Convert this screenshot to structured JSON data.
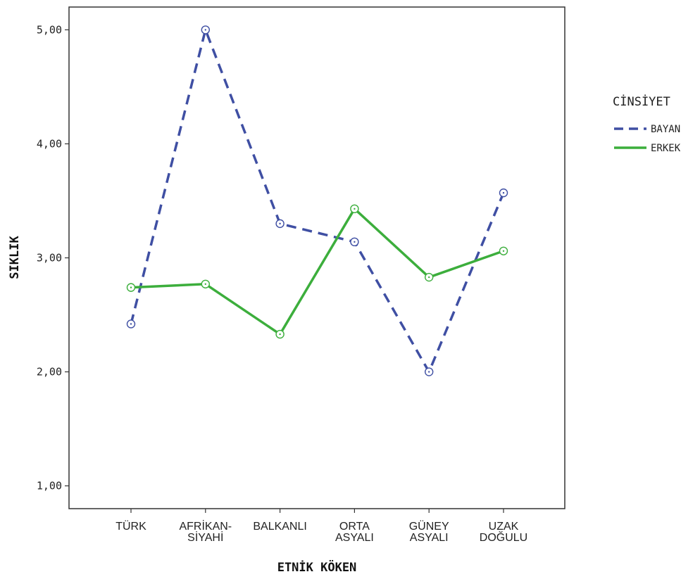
{
  "chart_data": {
    "type": "line",
    "categories": [
      [
        "TÜRK"
      ],
      [
        "AFRİKAN-",
        "SİYAHİ"
      ],
      [
        "BALKANLI"
      ],
      [
        "ORTA",
        "ASYALI"
      ],
      [
        "GÜNEY",
        "ASYALI"
      ],
      [
        "UZAK",
        "DOĞULU"
      ]
    ],
    "xlabel": "ETNİK KÖKEN",
    "ylabel": "SIKLIK",
    "ylim": [
      0.8,
      5.2
    ],
    "yticks": [
      1,
      2,
      3,
      4,
      5
    ],
    "ytick_labels": [
      "1,00",
      "2,00",
      "3,00",
      "4,00",
      "5,00"
    ],
    "legend": {
      "title": "CİNSİYET",
      "placement": "right"
    },
    "grid": false,
    "series": [
      {
        "name": "BAYAN",
        "color": "#3f4fa3",
        "dash": "dashed",
        "values": [
          2.42,
          5.0,
          3.3,
          3.14,
          2.0,
          3.57
        ]
      },
      {
        "name": "ERKEK",
        "color": "#3cae3c",
        "dash": "solid",
        "values": [
          2.74,
          2.77,
          2.33,
          3.43,
          2.83,
          3.06
        ]
      }
    ]
  }
}
